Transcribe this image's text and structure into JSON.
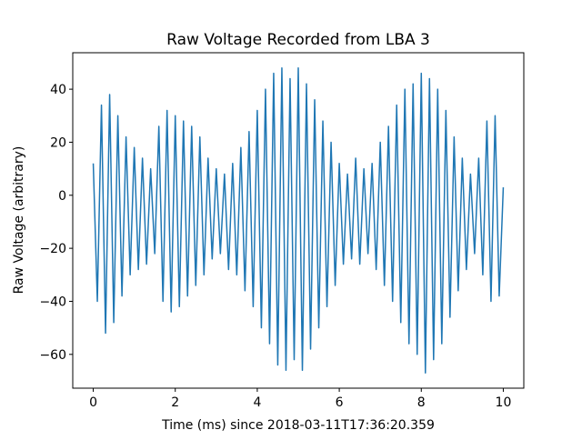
{
  "chart_data": {
    "type": "line",
    "title": "Raw Voltage Recorded from LBA 3",
    "xlabel": "Time (ms) since 2018-03-11T17:36:20.359",
    "ylabel": "Raw Voltage (arbitrary)",
    "color": "#1f77b4",
    "x": [
      0,
      0.1,
      0.2,
      0.3,
      0.4,
      0.5,
      0.6,
      0.7,
      0.8,
      0.9,
      1,
      1.1,
      1.2,
      1.3,
      1.4,
      1.5,
      1.6,
      1.7,
      1.8,
      1.9,
      2,
      2.1,
      2.2,
      2.3,
      2.4,
      2.5,
      2.6,
      2.7,
      2.8,
      2.9,
      3,
      3.1,
      3.2,
      3.3,
      3.4,
      3.5,
      3.6,
      3.7,
      3.8,
      3.9,
      4,
      4.1,
      4.2,
      4.3,
      4.4,
      4.5,
      4.6,
      4.7,
      4.8,
      4.9,
      5,
      5.1,
      5.2,
      5.3,
      5.4,
      5.5,
      5.6,
      5.7,
      5.8,
      5.9,
      6,
      6.1,
      6.2,
      6.3,
      6.4,
      6.5,
      6.6,
      6.7,
      6.8,
      6.9,
      7,
      7.1,
      7.2,
      7.3,
      7.4,
      7.5,
      7.6,
      7.7,
      7.8,
      7.9,
      8,
      8.1,
      8.2,
      8.3,
      8.4,
      8.5,
      8.6,
      8.7,
      8.8,
      8.9,
      9,
      9.1,
      9.2,
      9.3,
      9.4,
      9.5,
      9.6,
      9.7,
      9.8,
      9.9,
      10
    ],
    "values": [
      12,
      -40,
      34,
      -52,
      38,
      -48,
      30,
      -38,
      22,
      -30,
      18,
      -28,
      14,
      -26,
      10,
      -22,
      26,
      -40,
      32,
      -44,
      30,
      -42,
      28,
      -38,
      26,
      -34,
      22,
      -30,
      14,
      -24,
      10,
      -22,
      8,
      -28,
      12,
      -30,
      18,
      -36,
      24,
      -42,
      32,
      -50,
      40,
      -56,
      46,
      -64,
      48,
      -66,
      44,
      -62,
      48,
      -66,
      42,
      -58,
      36,
      -50,
      28,
      -42,
      20,
      -34,
      12,
      -26,
      8,
      -24,
      14,
      -26,
      10,
      -22,
      12,
      -28,
      20,
      -34,
      26,
      -40,
      34,
      -48,
      40,
      -56,
      42,
      -60,
      46,
      -67,
      44,
      -62,
      40,
      -56,
      32,
      -46,
      22,
      -36,
      14,
      -28,
      8,
      -22,
      14,
      -30,
      28,
      -40,
      30,
      -38,
      3
    ],
    "xlim": [
      -0.5,
      10.5
    ],
    "ylim": [
      -72.75,
      53.75
    ],
    "xticks": [
      0,
      2,
      4,
      6,
      8,
      10
    ],
    "yticks": [
      {
        "value": -60,
        "label": "−60"
      },
      {
        "value": -40,
        "label": "−40"
      },
      {
        "value": -20,
        "label": "−20"
      },
      0,
      20,
      40
    ]
  }
}
